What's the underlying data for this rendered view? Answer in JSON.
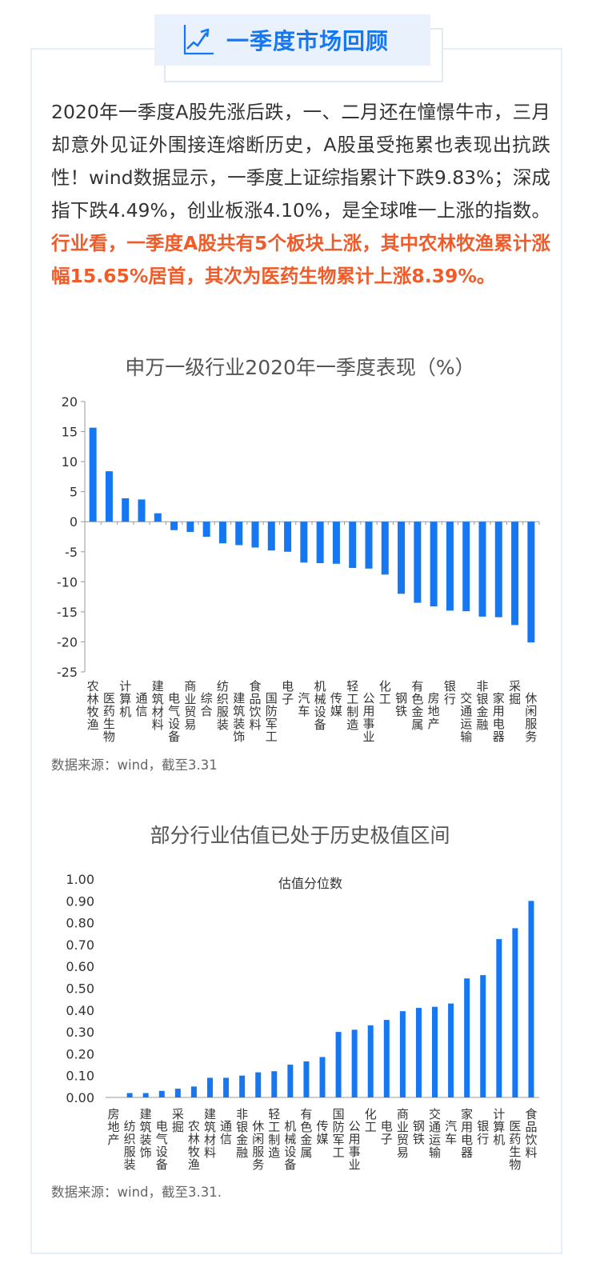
{
  "header": {
    "title": "一季度市场回顾",
    "icon": "trend-up-icon"
  },
  "paragraph": {
    "normal": "2020年一季度A股先涨后跌，一、二月还在憧憬牛市，三月却意外见证外围接连熔断历史，A股虽受拖累也表现出抗跌性！wind数据显示，一季度上证综指累计下跌9.83%；深成指下跌4.49%，创业板涨4.10%，是全球唯一上涨的指数。",
    "highlight": "行业看，一季度A股共有5个板块上涨，其中农林牧渔累计涨幅15.65%居首，其次为医药生物累计上涨8.39%。"
  },
  "colors": {
    "accent": "#1677f2",
    "highlight": "#ef5c2a",
    "bar": "#1677f2"
  },
  "chart_data": [
    {
      "type": "bar",
      "title": "申万一级行业2020年一季度表现（%）",
      "source": "数据来源：wind，截至3.31",
      "categories": [
        "农林牧渔",
        "医药生物",
        "计算机",
        "通信",
        "建筑材料",
        "电气设备",
        "商业贸易",
        "综合",
        "纺织服装",
        "建筑装饰",
        "食品饮料",
        "国防军工",
        "电子",
        "汽车",
        "机械设备",
        "传媒",
        "轻工制造",
        "公用事业",
        "化工",
        "钢铁",
        "有色金属",
        "房地产",
        "银行",
        "交通运输",
        "非银金融",
        "家用电器",
        "采掘",
        "休闲服务"
      ],
      "values": [
        15.65,
        8.39,
        3.9,
        3.7,
        1.4,
        -1.4,
        -1.7,
        -2.5,
        -3.6,
        -3.9,
        -4.3,
        -4.8,
        -5.0,
        -6.8,
        -6.9,
        -7.0,
        -7.7,
        -7.8,
        -8.8,
        -12.0,
        -13.5,
        -14.1,
        -14.8,
        -14.9,
        -15.8,
        -15.9,
        -17.2,
        -20.1
      ],
      "yticks": [
        20,
        15,
        10,
        5,
        0,
        -5,
        -10,
        -15,
        -20,
        -25
      ],
      "ylim": [
        -25,
        20
      ],
      "color": "#1677f2"
    },
    {
      "type": "bar",
      "title": "部分行业估值已处于历史极值区间",
      "series_label": "估值分位数",
      "source": "数据来源：wind，截至3.31.",
      "categories": [
        "房地产",
        "纺织服装",
        "建筑装饰",
        "电气设备",
        "采掘",
        "农林牧渔",
        "建筑材料",
        "通信",
        "非银金融",
        "休闲服务",
        "轻工制造",
        "机械设备",
        "有色金属",
        "传媒",
        "国防军工",
        "公用事业",
        "化工",
        "电子",
        "商业贸易",
        "钢铁",
        "交通运输",
        "汽车",
        "家用电器",
        "银行",
        "计算机",
        "医药生物",
        "食品饮料"
      ],
      "values": [
        0.0,
        0.02,
        0.02,
        0.03,
        0.04,
        0.05,
        0.09,
        0.09,
        0.1,
        0.115,
        0.12,
        0.15,
        0.165,
        0.185,
        0.3,
        0.31,
        0.33,
        0.355,
        0.395,
        0.41,
        0.415,
        0.43,
        0.545,
        0.56,
        0.725,
        0.775,
        0.9
      ],
      "yticks": [
        "1.00",
        "0.90",
        "0.80",
        "0.70",
        "0.60",
        "0.50",
        "0.40",
        "0.30",
        "0.20",
        "0.10",
        "0.00"
      ],
      "ylim": [
        0,
        1
      ],
      "color": "#1677f2"
    }
  ]
}
